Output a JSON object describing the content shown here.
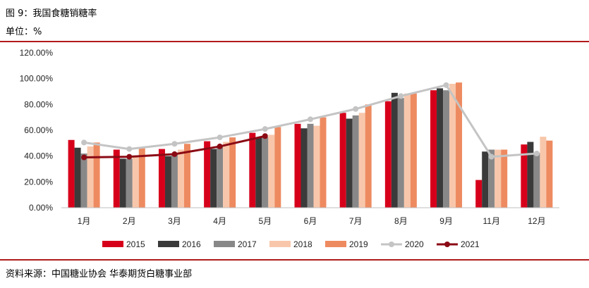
{
  "header": {
    "title": "图 9：我国食糖销糖率",
    "unit": "单位：%"
  },
  "footer": {
    "source": "资料来源：中国糖业协会 华泰期货白糖事业部"
  },
  "chart_data": {
    "type": "bar",
    "categories": [
      "1月",
      "2月",
      "3月",
      "4月",
      "5月",
      "6月",
      "7月",
      "8月",
      "9月",
      "11月",
      "12月"
    ],
    "ylim": [
      0,
      120
    ],
    "yticks": [
      "0.00%",
      "20.00%",
      "40.00%",
      "60.00%",
      "80.00%",
      "100.00%",
      "120.00%"
    ],
    "grid": false,
    "legend_position": "bottom",
    "series": [
      {
        "name": "2015",
        "kind": "bar",
        "color": "#d7001b",
        "values": [
          52.5,
          45,
          45.5,
          51.5,
          58,
          65,
          73.5,
          82.5,
          91,
          21.5,
          49
        ]
      },
      {
        "name": "2016",
        "kind": "bar",
        "color": "#3a3a3a",
        "values": [
          46.5,
          38,
          40,
          45.5,
          54.5,
          61.5,
          69,
          89,
          92.5,
          43.5,
          51
        ]
      },
      {
        "name": "2017",
        "kind": "bar",
        "color": "#888888",
        "values": [
          42,
          38,
          42,
          48,
          54.5,
          65,
          71.5,
          85,
          91,
          45,
          42.5
        ]
      },
      {
        "name": "2018",
        "kind": "bar",
        "color": "#f8c7ab",
        "values": [
          47.5,
          40.5,
          45,
          51,
          56.5,
          63.5,
          73.5,
          88.5,
          96,
          45,
          55
        ]
      },
      {
        "name": "2019",
        "kind": "bar",
        "color": "#ee8a60",
        "values": [
          50.5,
          46,
          49.5,
          54.5,
          62.5,
          70,
          80,
          88.5,
          97,
          45,
          52
        ]
      },
      {
        "name": "2020",
        "kind": "line",
        "color": "#c4c4c4",
        "values": [
          50.5,
          45.5,
          49.5,
          54.5,
          61,
          68.5,
          76.5,
          86.5,
          95,
          39.5,
          42
        ]
      },
      {
        "name": "2021",
        "kind": "line",
        "color": "#8b0a14",
        "values": [
          39,
          39.5,
          41.5,
          47.5,
          55.5,
          null,
          null,
          null,
          null,
          null,
          null
        ]
      }
    ]
  }
}
